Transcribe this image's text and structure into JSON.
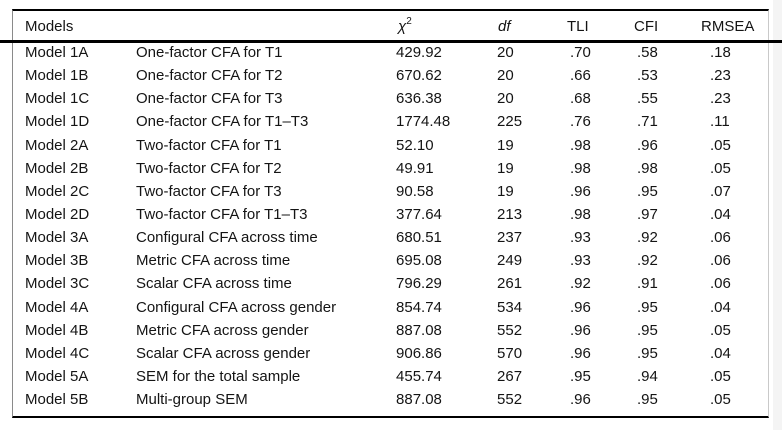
{
  "table": {
    "header": {
      "models": "Models",
      "chi_base": "χ",
      "chi_sup": "2",
      "df": "df",
      "tli": "TLI",
      "cfi": "CFI",
      "rmsea": "RMSEA"
    },
    "rows": [
      {
        "model": "Model 1A",
        "description": "One-factor CFA for T1",
        "chi2": "429.92",
        "df": "20",
        "tli": ".70",
        "cfi": ".58",
        "rmsea": ".18"
      },
      {
        "model": "Model 1B",
        "description": "One-factor CFA for T2",
        "chi2": "670.62",
        "df": "20",
        "tli": ".66",
        "cfi": ".53",
        "rmsea": ".23"
      },
      {
        "model": "Model 1C",
        "description": "One-factor CFA for T3",
        "chi2": "636.38",
        "df": "20",
        "tli": ".68",
        "cfi": ".55",
        "rmsea": ".23"
      },
      {
        "model": "Model 1D",
        "description": "One-factor CFA for T1–T3",
        "chi2": "1774.48",
        "df": "225",
        "tli": ".76",
        "cfi": ".71",
        "rmsea": ".11"
      },
      {
        "model": "Model 2A",
        "description": "Two-factor CFA for T1",
        "chi2": "52.10",
        "df": "19",
        "tli": ".98",
        "cfi": ".96",
        "rmsea": ".05"
      },
      {
        "model": "Model 2B",
        "description": "Two-factor CFA for T2",
        "chi2": "49.91",
        "df": "19",
        "tli": ".98",
        "cfi": ".98",
        "rmsea": ".05"
      },
      {
        "model": "Model 2C",
        "description": "Two-factor CFA for T3",
        "chi2": "90.58",
        "df": "19",
        "tli": ".96",
        "cfi": ".95",
        "rmsea": ".07"
      },
      {
        "model": "Model 2D",
        "description": "Two-factor CFA for T1–T3",
        "chi2": "377.64",
        "df": "213",
        "tli": ".98",
        "cfi": ".97",
        "rmsea": ".04"
      },
      {
        "model": "Model 3A",
        "description": "Configural CFA across time",
        "chi2": "680.51",
        "df": "237",
        "tli": ".93",
        "cfi": ".92",
        "rmsea": ".06"
      },
      {
        "model": "Model 3B",
        "description": "Metric CFA across time",
        "chi2": "695.08",
        "df": "249",
        "tli": ".93",
        "cfi": ".92",
        "rmsea": ".06"
      },
      {
        "model": "Model 3C",
        "description": "Scalar CFA across time",
        "chi2": "796.29",
        "df": "261",
        "tli": ".92",
        "cfi": ".91",
        "rmsea": ".06"
      },
      {
        "model": "Model 4A",
        "description": "Configural CFA across gender",
        "chi2": "854.74",
        "df": "534",
        "tli": ".96",
        "cfi": ".95",
        "rmsea": ".04"
      },
      {
        "model": "Model 4B",
        "description": "Metric CFA across gender",
        "chi2": "887.08",
        "df": "552",
        "tli": ".96",
        "cfi": ".95",
        "rmsea": ".05"
      },
      {
        "model": "Model 4C",
        "description": "Scalar CFA across gender",
        "chi2": "906.86",
        "df": "570",
        "tli": ".96",
        "cfi": ".95",
        "rmsea": ".04"
      },
      {
        "model": "Model 5A",
        "description": "SEM for the total sample",
        "chi2": "455.74",
        "df": "267",
        "tli": ".95",
        "cfi": ".94",
        "rmsea": ".05"
      },
      {
        "model": "Model 5B",
        "description": "Multi-group SEM",
        "chi2": "887.08",
        "df": "552",
        "tli": ".96",
        "cfi": ".95",
        "rmsea": ".05"
      }
    ]
  }
}
